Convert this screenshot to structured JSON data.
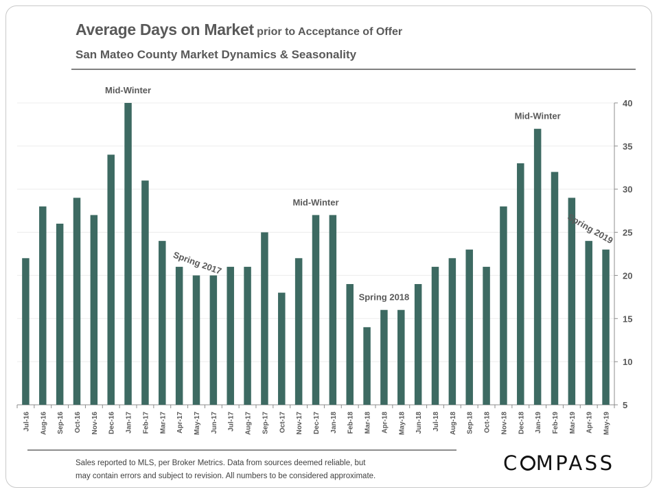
{
  "header": {
    "title_main": "Average Days on Market",
    "title_suffix": " prior to Acceptance of Offer",
    "subtitle": "San Mateo County Market Dynamics  & Seasonality"
  },
  "footnote": {
    "line1": "Sales reported to MLS, per Broker Metrics. Data from sources deemed reliable, but",
    "line2": "may contain errors and subject to revision. All numbers to be considered approximate."
  },
  "logo": {
    "before": "C",
    "after": "MPASS"
  },
  "colors": {
    "bar": "#3d6a62",
    "text": "#595959",
    "grid": "#ececec"
  },
  "chart_data": {
    "type": "bar",
    "categories": [
      "Jul-16",
      "Aug-16",
      "Sep-16",
      "Oct-16",
      "Nov-16",
      "Dec-16",
      "Jan-17",
      "Feb-17",
      "Mar-17",
      "Apr-17",
      "May-17",
      "Jun-17",
      "Jul-17",
      "Aug-17",
      "Sep-17",
      "Oct-17",
      "Nov-17",
      "Dec-17",
      "Jan-18",
      "Feb-18",
      "Mar-18",
      "Apr-18",
      "May-18",
      "Jun-18",
      "Jul-18",
      "Aug-18",
      "Sep-18",
      "Oct-18",
      "Nov-18",
      "Dec-18",
      "Jan-19",
      "Feb-19",
      "Mar-19",
      "Apr-19",
      "May-19"
    ],
    "values": [
      22,
      28,
      26,
      29,
      27,
      34,
      40,
      31,
      24,
      21,
      20,
      20,
      21,
      21,
      25,
      18,
      22,
      27,
      27,
      19,
      14,
      16,
      16,
      19,
      21,
      22,
      23,
      21,
      28,
      33,
      37,
      32,
      29,
      24,
      23
    ],
    "ylim": [
      5,
      40
    ],
    "yticks": [
      5,
      10,
      15,
      20,
      25,
      30,
      35,
      40
    ],
    "y_axis_side": "right",
    "grid": true,
    "annotations": [
      {
        "text": "Mid-Winter",
        "category": "Jan-17",
        "rotate": 0
      },
      {
        "text": "Spring 2017",
        "category": "May-17",
        "rotate": 20
      },
      {
        "text": "Mid-Winter",
        "category": "Dec-17",
        "rotate": 0
      },
      {
        "text": "Spring 2018",
        "category": "Apr-18",
        "rotate": 0
      },
      {
        "text": "Mid-Winter",
        "category": "Jan-19",
        "rotate": 0
      },
      {
        "text": "Spring 2019",
        "category": "Apr-19",
        "rotate": 30
      }
    ]
  }
}
